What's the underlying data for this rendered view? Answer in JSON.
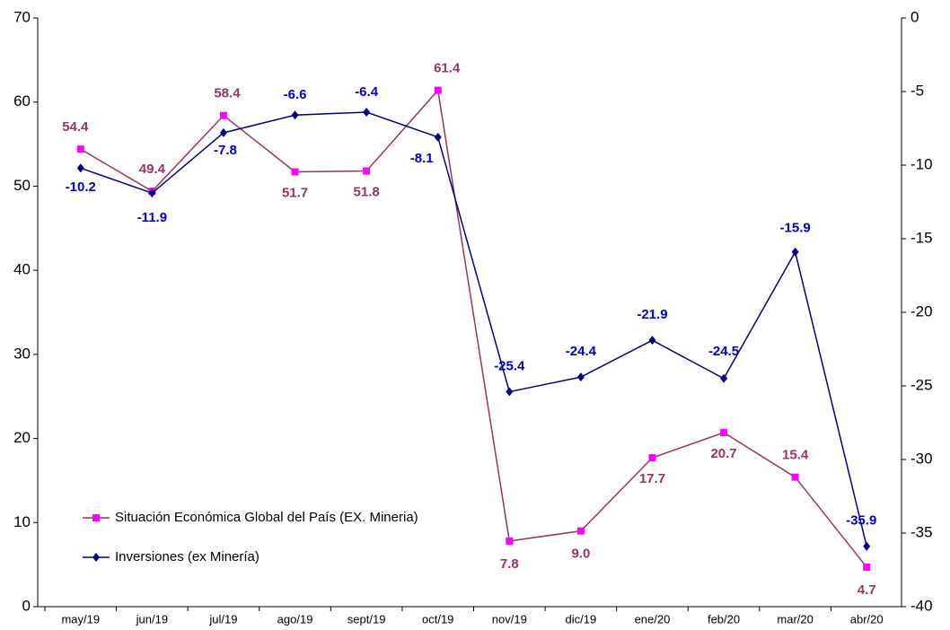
{
  "chart_data": {
    "type": "line",
    "categories": [
      "may/19",
      "jun/19",
      "jul/19",
      "ago/19",
      "sept/19",
      "oct/19",
      "nov/19",
      "dic/19",
      "ene/20",
      "feb/20",
      "mar/20",
      "abr/20"
    ],
    "series": [
      {
        "name": "Situación Económica Global del País (EX. Mineria)",
        "color": "#993366",
        "marker_color": "#ff00ff",
        "marker": "square",
        "values": [
          54.4,
          49.4,
          58.4,
          51.7,
          51.8,
          61.4,
          7.8,
          9.0,
          17.7,
          20.7,
          15.4,
          4.7
        ],
        "value_labels": [
          "54.4",
          "49.4",
          "58.4",
          "51.7",
          "51.8",
          "61.4",
          "7.8",
          "9.0",
          "17.7",
          "20.7",
          "15.4",
          "4.7"
        ]
      },
      {
        "name": "Inversiones (ex Minería)",
        "color": "#000080",
        "marker_color": "#000080",
        "label_color": "#0000cc",
        "marker": "diamond",
        "axis": "y2",
        "values": [
          -10.2,
          -11.9,
          -7.8,
          -6.6,
          -6.4,
          -8.1,
          -25.4,
          -24.4,
          -21.9,
          -24.5,
          -15.9,
          -35.9
        ],
        "value_labels": [
          "-10.2",
          "-11.9",
          "-7.8",
          "-6.6",
          "-6.4",
          "-8.1",
          "-25.4",
          "-24.4",
          "-21.9",
          "-24.5",
          "-15.9",
          "-35.9"
        ]
      }
    ],
    "ylim": [
      0,
      70
    ],
    "yticks": [
      0,
      10,
      20,
      30,
      40,
      50,
      60,
      70
    ],
    "y2lim": [
      -40,
      0
    ],
    "y2ticks": [
      0,
      -5,
      -10,
      -15,
      -20,
      -25,
      -30,
      -35,
      -40
    ],
    "grid": false,
    "legend": "lower left"
  }
}
